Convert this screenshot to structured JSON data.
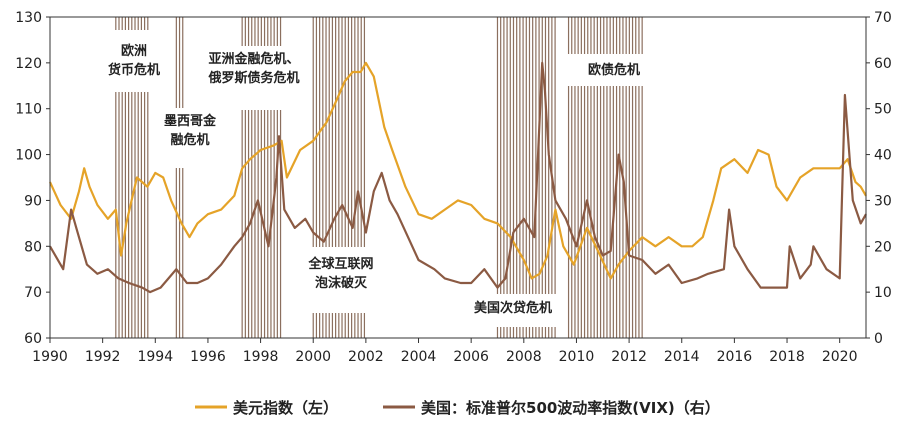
{
  "chart_data": {
    "type": "line",
    "title": "",
    "colors": {
      "dxy": "#E5A328",
      "vix": "#8B5A43",
      "band": "#8B6F5E",
      "axis": "#333333"
    },
    "x_axis": {
      "range": [
        1990,
        2021
      ],
      "ticks": [
        "1990",
        "1992",
        "1994",
        "1996",
        "1998",
        "2000",
        "2002",
        "2004",
        "2006",
        "2008",
        "2010",
        "2012",
        "2014",
        "2016",
        "2018",
        "2020"
      ]
    },
    "y_left": {
      "range": [
        60,
        130
      ],
      "ticks": [
        "60",
        "70",
        "80",
        "90",
        "100",
        "110",
        "120",
        "130"
      ]
    },
    "y_right": {
      "range": [
        0,
        70
      ],
      "ticks": [
        "0",
        "10",
        "20",
        "30",
        "40",
        "50",
        "60",
        "70"
      ]
    },
    "crisis_periods": [
      {
        "start": 1992.5,
        "end": 1993.8,
        "label": [
          "欧洲",
          "货币危机"
        ]
      },
      {
        "start": 1994.8,
        "end": 1995.1,
        "label": [
          "墨西哥金",
          "融危机"
        ]
      },
      {
        "start": 1997.3,
        "end": 1998.8,
        "label": [
          "亚洲金融危机、",
          "俄罗斯债务危机"
        ]
      },
      {
        "start": 2000.0,
        "end": 2002.0,
        "label": [
          "全球互联网",
          "泡沫破灭"
        ]
      },
      {
        "start": 2007.0,
        "end": 2009.2,
        "label": [
          "美国次贷危机"
        ]
      },
      {
        "start": 2009.7,
        "end": 2012.5,
        "label": [
          "欧债危机"
        ]
      }
    ],
    "series": [
      {
        "name": "美元指数（左）",
        "axis": "left",
        "x": [
          1990,
          1990.4,
          1990.8,
          1991.1,
          1991.3,
          1991.5,
          1991.8,
          1992.2,
          1992.5,
          1992.7,
          1992.9,
          1993.3,
          1993.7,
          1994,
          1994.3,
          1994.6,
          1995,
          1995.3,
          1995.6,
          1996,
          1996.5,
          1997,
          1997.3,
          1997.6,
          1998,
          1998.5,
          1998.8,
          1999,
          1999.5,
          2000,
          2000.5,
          2000.9,
          2001.2,
          2001.5,
          2001.8,
          2002,
          2002.3,
          2002.7,
          2003,
          2003.5,
          2004,
          2004.5,
          2005,
          2005.5,
          2006,
          2006.5,
          2007,
          2007.5,
          2008,
          2008.3,
          2008.6,
          2008.9,
          2009.2,
          2009.5,
          2009.9,
          2010.4,
          2010.9,
          2011.3,
          2011.6,
          2012,
          2012.5,
          2013,
          2013.5,
          2014,
          2014.4,
          2014.8,
          2015.2,
          2015.5,
          2016,
          2016.5,
          2016.9,
          2017.3,
          2017.6,
          2018,
          2018.5,
          2019,
          2019.5,
          2020,
          2020.3,
          2020.6,
          2020.8,
          2021
        ],
        "values": [
          94,
          89,
          86,
          92,
          97,
          93,
          89,
          86,
          88,
          78,
          85,
          95,
          93,
          96,
          95,
          90,
          85,
          82,
          85,
          87,
          88,
          91,
          97,
          99,
          101,
          102,
          103,
          95,
          101,
          103,
          107,
          112,
          116,
          118,
          118,
          120,
          117,
          106,
          101,
          93,
          87,
          86,
          88,
          90,
          89,
          86,
          85,
          82,
          77,
          73,
          74,
          78,
          88,
          80,
          76,
          84,
          78,
          73,
          76,
          79,
          82,
          80,
          82,
          80,
          80,
          82,
          90,
          97,
          99,
          96,
          101,
          100,
          93,
          90,
          95,
          97,
          97,
          97,
          99,
          94,
          93,
          91
        ]
      },
      {
        "name": "美国：标准普尔500波动率指数(VIX)（右）",
        "axis": "right",
        "x": [
          1990,
          1990.5,
          1990.8,
          1991,
          1991.4,
          1991.8,
          1992.2,
          1992.6,
          1993,
          1993.5,
          1993.8,
          1994.2,
          1994.5,
          1994.8,
          1995.2,
          1995.6,
          1996,
          1996.5,
          1997,
          1997.3,
          1997.6,
          1997.9,
          1998.3,
          1998.6,
          1998.7,
          1998.9,
          1999.3,
          1999.7,
          2000,
          2000.4,
          2000.8,
          2001.1,
          2001.5,
          2001.7,
          2002,
          2002.3,
          2002.6,
          2002.9,
          2003.2,
          2003.6,
          2004,
          2004.6,
          2005,
          2005.6,
          2006,
          2006.5,
          2007,
          2007.3,
          2007.6,
          2008,
          2008.4,
          2008.7,
          2008.8,
          2008.95,
          2009.2,
          2009.6,
          2010,
          2010.4,
          2010.7,
          2011,
          2011.3,
          2011.6,
          2011.8,
          2012,
          2012.5,
          2013,
          2013.5,
          2014,
          2014.6,
          2015,
          2015.6,
          2015.8,
          2016,
          2016.5,
          2017,
          2017.5,
          2018,
          2018.1,
          2018.5,
          2018.9,
          2019,
          2019.5,
          2020,
          2020.2,
          2020.5,
          2020.8,
          2021
        ],
        "values": [
          20,
          15,
          28,
          24,
          16,
          14,
          15,
          13,
          12,
          11,
          10,
          11,
          13,
          15,
          12,
          12,
          13,
          16,
          20,
          22,
          25,
          30,
          20,
          35,
          44,
          28,
          24,
          26,
          23,
          21,
          26,
          29,
          24,
          32,
          23,
          32,
          36,
          30,
          27,
          22,
          17,
          15,
          13,
          12,
          12,
          15,
          11,
          13,
          23,
          26,
          22,
          60,
          54,
          40,
          30,
          26,
          20,
          30,
          22,
          18,
          19,
          40,
          34,
          18,
          17,
          14,
          16,
          12,
          13,
          14,
          15,
          28,
          20,
          15,
          11,
          11,
          11,
          20,
          13,
          16,
          20,
          15,
          13,
          53,
          30,
          25,
          27
        ]
      }
    ]
  },
  "legend": [
    {
      "label": "美元指数（左）",
      "color": "#E5A328"
    },
    {
      "label": "美国：标准普尔500波动率指数(VIX)（右）",
      "color": "#8B5A43"
    }
  ]
}
